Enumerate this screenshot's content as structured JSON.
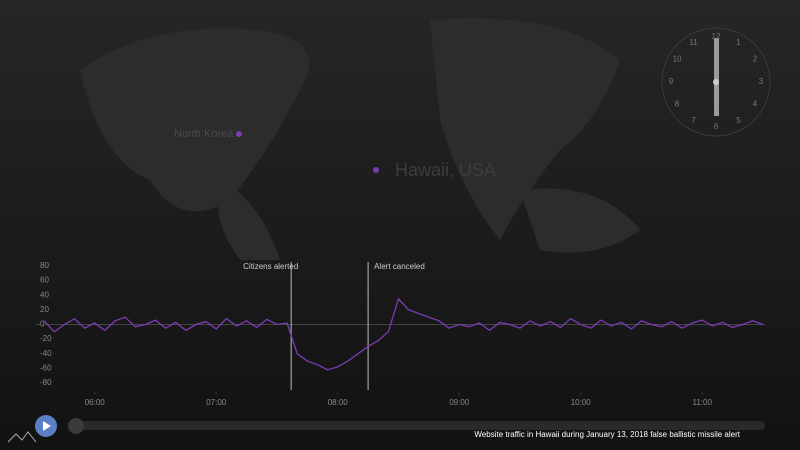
{
  "chart_data": {
    "type": "line",
    "caption": "Website traffic in Hawaii during January 13, 2018 false ballistic missile alert",
    "map_labels": [
      "North Korea",
      "Hawaii, USA"
    ],
    "clock_numbers": [
      12,
      1,
      2,
      3,
      4,
      5,
      6,
      7,
      8,
      9,
      10,
      11
    ],
    "annotations": [
      {
        "text": "Citizens alerted",
        "x": "07:37"
      },
      {
        "text": "Alert canceled",
        "x": "08:15"
      }
    ],
    "x": [
      "05:35",
      "05:40",
      "05:45",
      "05:50",
      "05:55",
      "06:00",
      "06:05",
      "06:10",
      "06:15",
      "06:20",
      "06:25",
      "06:30",
      "06:35",
      "06:40",
      "06:45",
      "06:50",
      "06:55",
      "07:00",
      "07:05",
      "07:10",
      "07:15",
      "07:20",
      "07:25",
      "07:30",
      "07:35",
      "07:40",
      "07:45",
      "07:50",
      "07:55",
      "08:00",
      "08:05",
      "08:10",
      "08:15",
      "08:20",
      "08:25",
      "08:30",
      "08:35",
      "08:40",
      "08:45",
      "08:50",
      "08:55",
      "09:00",
      "09:05",
      "09:10",
      "09:15",
      "09:20",
      "09:25",
      "09:30",
      "09:35",
      "09:40",
      "09:45",
      "09:50",
      "09:55",
      "10:00",
      "10:05",
      "10:10",
      "10:15",
      "10:20",
      "10:25",
      "10:30",
      "10:35",
      "10:40",
      "10:45",
      "10:50",
      "10:55",
      "11:00",
      "11:05",
      "11:10",
      "11:15",
      "11:20",
      "11:25",
      "11:30"
    ],
    "series": [
      {
        "color": "#7a3db5",
        "values": [
          5,
          -10,
          0,
          8,
          -5,
          2,
          -8,
          5,
          10,
          -3,
          0,
          6,
          -5,
          3,
          -8,
          0,
          4,
          -6,
          8,
          -2,
          5,
          -4,
          7,
          0,
          2,
          -40,
          -50,
          -55,
          -62,
          -58,
          -50,
          -40,
          -30,
          -22,
          -10,
          35,
          20,
          15,
          10,
          5,
          -5,
          0,
          -3,
          2,
          -8,
          3,
          0,
          -5,
          5,
          -2,
          4,
          -4,
          8,
          0,
          -5,
          6,
          -2,
          3,
          -6,
          5,
          0,
          -3,
          4,
          -5,
          2,
          6,
          -2,
          3,
          -4,
          0,
          5,
          0
        ]
      }
    ],
    "xlim": [
      "05:31",
      "11:31"
    ],
    "xticks": [
      "06:00",
      "07:00",
      "08:00",
      "09:00",
      "10:00",
      "11:00"
    ],
    "ylim": [
      -80,
      80
    ],
    "yticks": [
      80,
      60,
      40,
      20,
      0,
      -20,
      -40,
      -60,
      -80
    ]
  }
}
